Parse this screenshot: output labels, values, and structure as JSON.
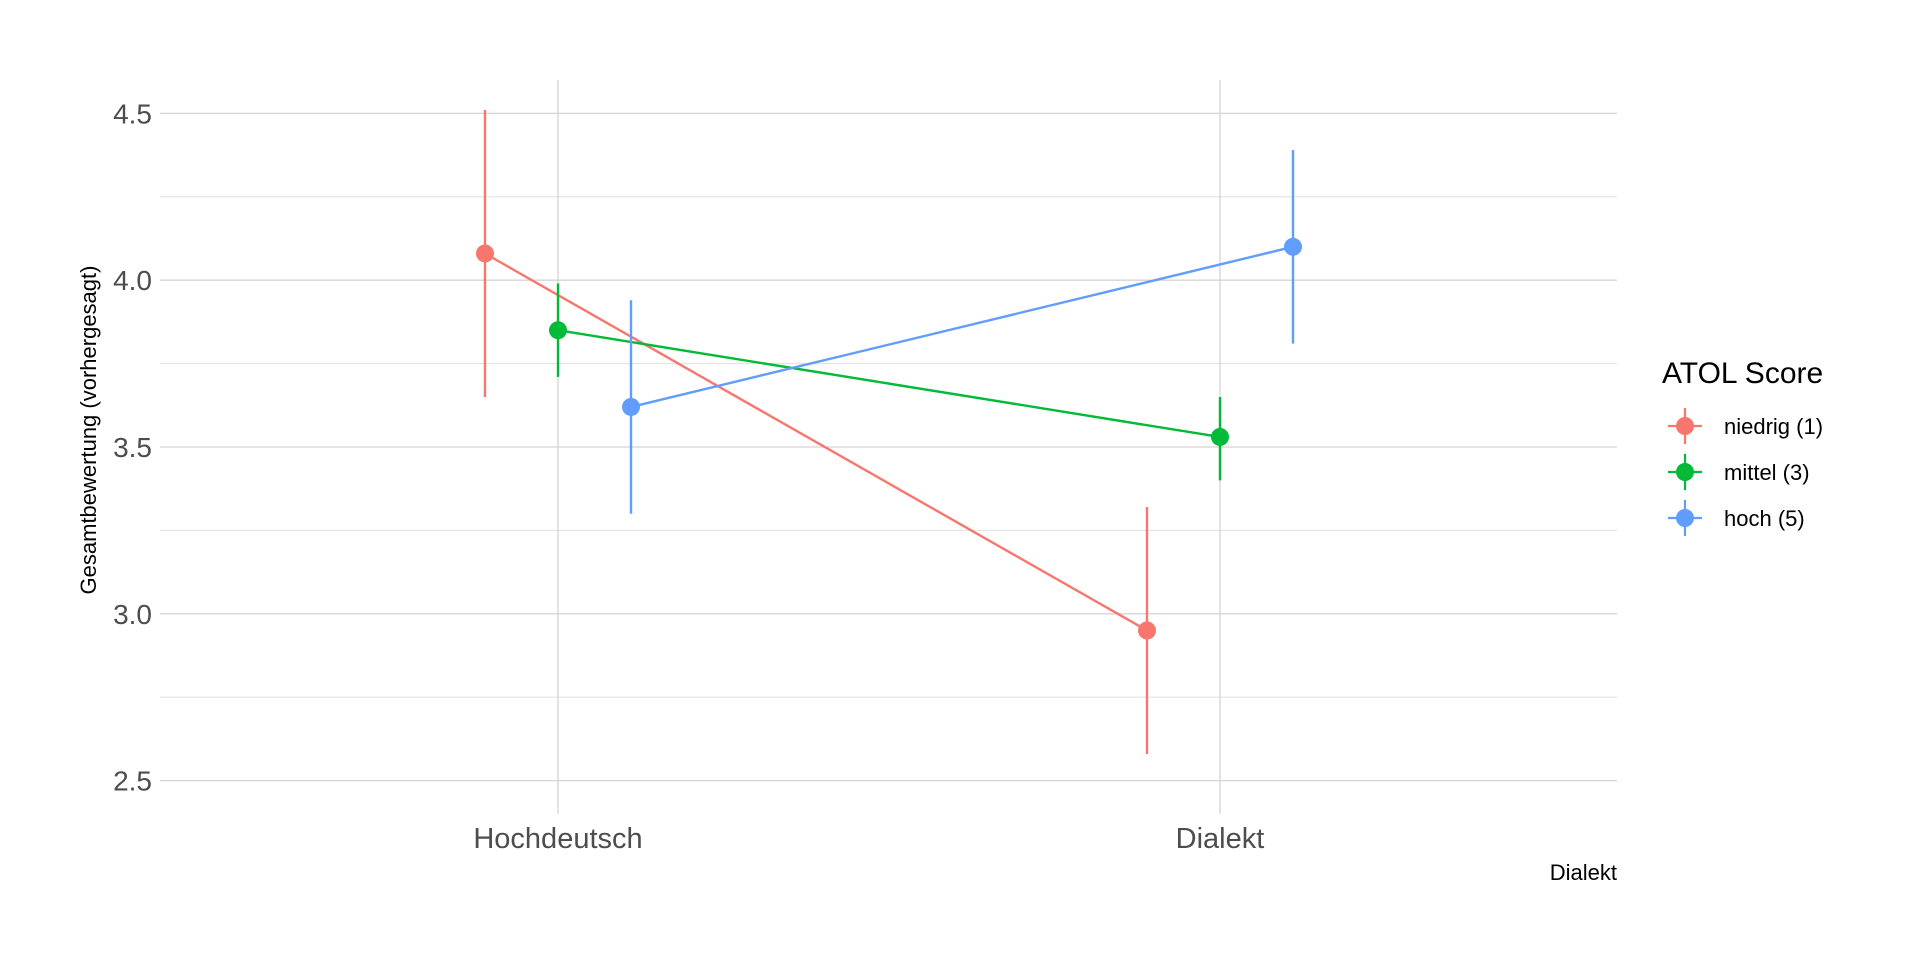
{
  "chart_data": {
    "type": "line",
    "xlabel": "Dialekt",
    "ylabel": "Gesamtbewertung (vorhergesagt)",
    "categories": [
      "Hochdeutsch",
      "Dialekt"
    ],
    "ylim": [
      2.4,
      4.6
    ],
    "yticks": [
      2.5,
      3.0,
      3.5,
      4.0,
      4.5
    ],
    "ytick_labels": [
      "2.5",
      "3.0",
      "3.5",
      "4.0",
      "4.5"
    ],
    "grid": true,
    "legend": {
      "title": "ATOL Score",
      "placement": "right"
    },
    "series": [
      {
        "name": "niedrig (1)",
        "color": "#F8766D",
        "values": [
          4.08,
          2.95
        ],
        "lower": [
          3.65,
          2.58
        ],
        "upper": [
          4.51,
          3.32
        ]
      },
      {
        "name": "mittel (3)",
        "color": "#00BA38",
        "values": [
          3.85,
          3.53
        ],
        "lower": [
          3.71,
          3.4
        ],
        "upper": [
          3.99,
          3.65
        ]
      },
      {
        "name": "hoch (5)",
        "color": "#619CFF",
        "values": [
          3.62,
          4.1
        ],
        "lower": [
          3.3,
          3.81
        ],
        "upper": [
          3.94,
          4.39
        ]
      }
    ]
  }
}
